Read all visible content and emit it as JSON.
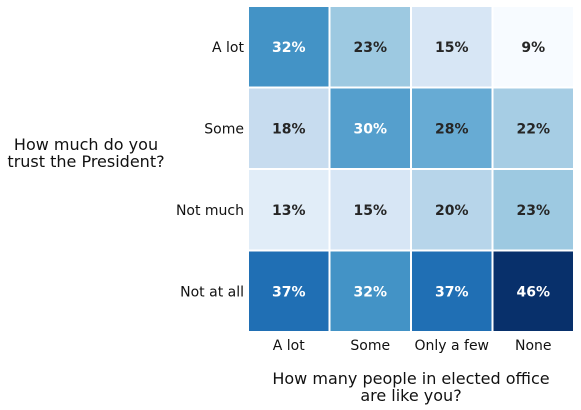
{
  "chart_data": {
    "type": "heatmap",
    "ylabel_lines": [
      "How much do you",
      "trust the President?"
    ],
    "xlabel_lines": [
      "How many people in elected office",
      "are like you?"
    ],
    "x_categories": [
      "A lot",
      "Some",
      "Only a few",
      "None"
    ],
    "y_categories": [
      "A lot",
      "Some",
      "Not much",
      "Not at all"
    ],
    "values": [
      [
        32,
        23,
        15,
        9
      ],
      [
        18,
        30,
        28,
        22
      ],
      [
        13,
        15,
        20,
        23
      ],
      [
        37,
        32,
        37,
        46
      ]
    ],
    "value_suffix": "%",
    "colormap": "Blues",
    "colorbar": false
  }
}
